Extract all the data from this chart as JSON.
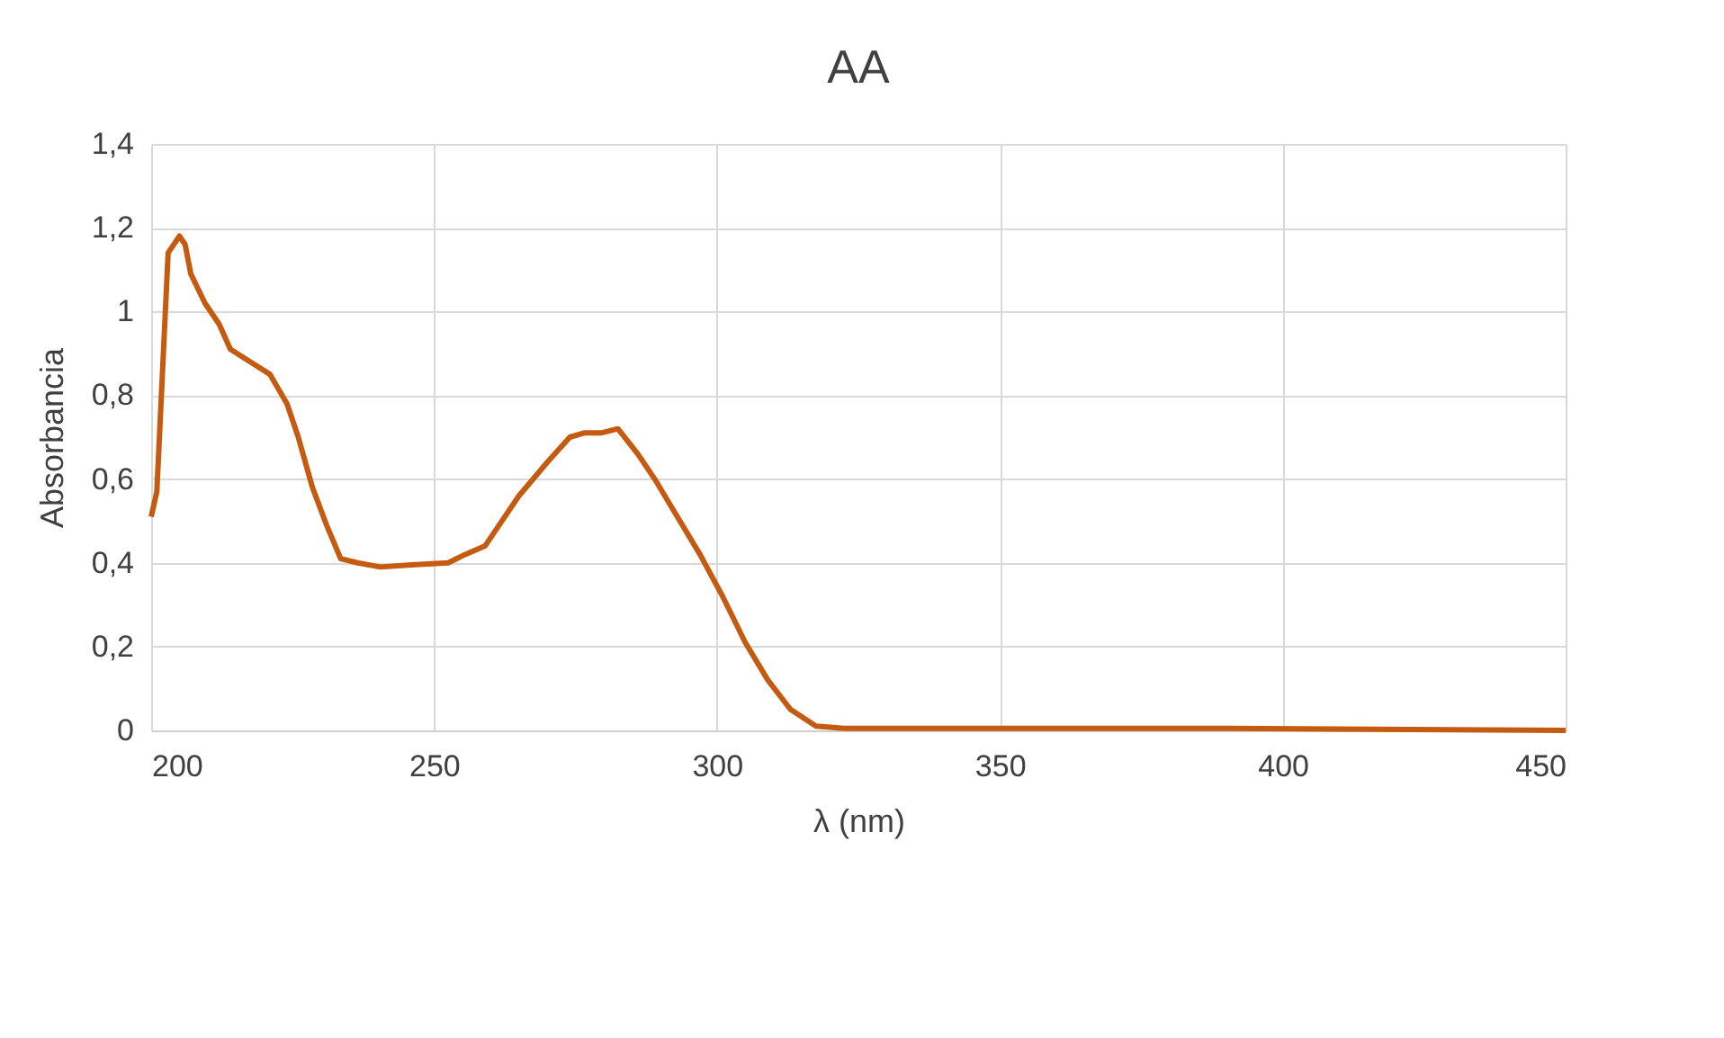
{
  "chart_data": {
    "type": "line",
    "title": "AA",
    "xlabel": "λ (nm)",
    "ylabel": "Absorbancia",
    "x": [
      200,
      201,
      203,
      205,
      206,
      207,
      209.5,
      212,
      214,
      217.5,
      221,
      224,
      226,
      228.5,
      231,
      233.5,
      236.5,
      240.5,
      246,
      252.5,
      255.5,
      259,
      262,
      265,
      270,
      274,
      276.5,
      279.5,
      282.5,
      286,
      289,
      293,
      297,
      301,
      305,
      309,
      313,
      317.5,
      322.5,
      325.5,
      382,
      390,
      450
    ],
    "series": [
      {
        "color": "#c55a11",
        "values": [
          0.51,
          0.57,
          1.14,
          1.18,
          1.16,
          1.09,
          1.02,
          0.97,
          0.91,
          0.88,
          0.85,
          0.78,
          0.7,
          0.58,
          0.49,
          0.41,
          0.4,
          0.39,
          0.395,
          0.4,
          0.42,
          0.44,
          0.5,
          0.56,
          0.64,
          0.7,
          0.71,
          0.71,
          0.72,
          0.66,
          0.6,
          0.51,
          0.42,
          0.32,
          0.21,
          0.12,
          0.05,
          0.01,
          0.005,
          0.005,
          0.005,
          0.005,
          0
        ]
      }
    ],
    "xlim": [
      200,
      450
    ],
    "xticks": [
      200,
      250,
      300,
      350,
      400,
      450
    ],
    "ylim": [
      0,
      1.4
    ],
    "yticks": [
      {
        "value": 0,
        "label": "0"
      },
      {
        "value": 0.2,
        "label": "0,2"
      },
      {
        "value": 0.4,
        "label": "0,4"
      },
      {
        "value": 0.6,
        "label": "0,6"
      },
      {
        "value": 0.8,
        "label": "0,8"
      },
      {
        "value": 1,
        "label": "1"
      },
      {
        "value": 1.2,
        "label": "1,2"
      },
      {
        "value": 1.4,
        "label": "1,4"
      }
    ],
    "grid": true,
    "marker": "none",
    "line_style": "solid"
  }
}
